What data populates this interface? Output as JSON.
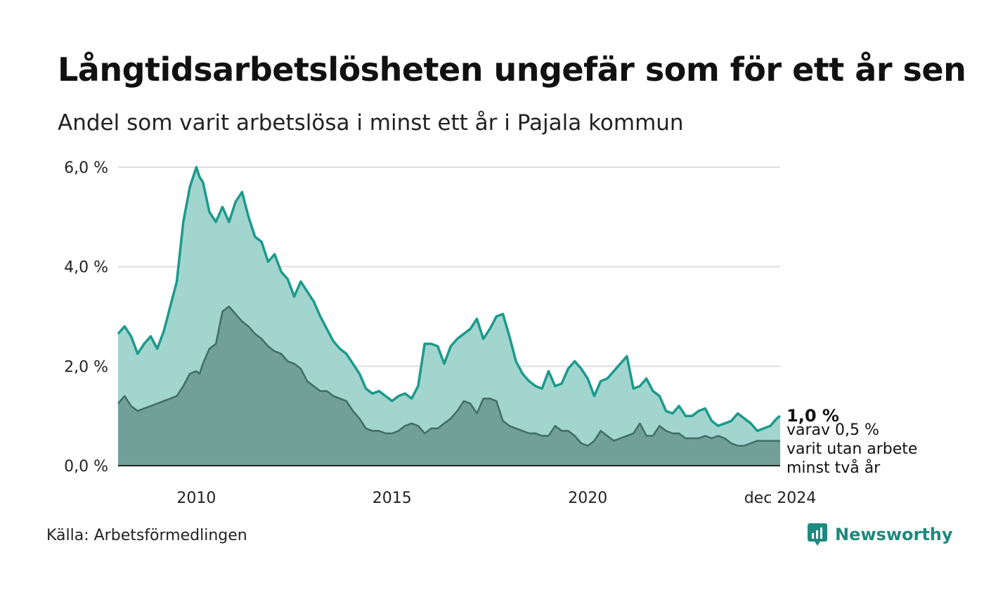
{
  "title": "Långtidsarbetslösheten ungefär som för ett år sen",
  "subtitle": "Andel som varit arbetslösa i minst ett år i Pajala kommun",
  "source": "Källa: Arbetsförmedlingen",
  "brand": "Newsworthy",
  "colors": {
    "line_total": "#1a9a8c",
    "area_total": "#a3d5cf",
    "line_long": "#3e6e64",
    "area_long": "#729f98",
    "grid": "#dddddd"
  },
  "chart_data": {
    "type": "area",
    "title": "Andel som varit arbetslösa i minst ett år i Pajala kommun",
    "xlabel": "",
    "ylabel": "",
    "ylim": [
      0,
      6
    ],
    "xlim": [
      2008.0,
      2024.917
    ],
    "y_ticks": [
      "6,0 %",
      "4,0 %",
      "2,0 %",
      "0,0 %"
    ],
    "y_tick_values": [
      6,
      4,
      2,
      0
    ],
    "x_ticks": [
      "2010",
      "2015",
      "2020",
      "dec 2024"
    ],
    "x_tick_values": [
      2010,
      2015,
      2020,
      2024.917
    ],
    "end_label_value": "1,0 %",
    "end_label_note": [
      "varav 0,5 %",
      "varit utan arbete",
      "minst två år"
    ],
    "series": [
      {
        "name": "Arbetslösa minst ett år",
        "x": [
          2008.0,
          2008.167,
          2008.333,
          2008.5,
          2008.667,
          2008.833,
          2009.0,
          2009.167,
          2009.333,
          2009.5,
          2009.667,
          2009.833,
          2010.0,
          2010.083,
          2010.167,
          2010.333,
          2010.5,
          2010.667,
          2010.833,
          2011.0,
          2011.167,
          2011.333,
          2011.5,
          2011.667,
          2011.833,
          2012.0,
          2012.167,
          2012.333,
          2012.5,
          2012.667,
          2012.833,
          2013.0,
          2013.167,
          2013.333,
          2013.5,
          2013.667,
          2013.833,
          2014.0,
          2014.167,
          2014.333,
          2014.5,
          2014.667,
          2014.833,
          2015.0,
          2015.167,
          2015.333,
          2015.5,
          2015.667,
          2015.833,
          2016.0,
          2016.167,
          2016.333,
          2016.5,
          2016.667,
          2016.833,
          2017.0,
          2017.167,
          2017.333,
          2017.5,
          2017.667,
          2017.833,
          2018.0,
          2018.167,
          2018.333,
          2018.5,
          2018.667,
          2018.833,
          2019.0,
          2019.167,
          2019.333,
          2019.5,
          2019.667,
          2019.833,
          2020.0,
          2020.167,
          2020.333,
          2020.5,
          2020.667,
          2020.833,
          2021.0,
          2021.167,
          2021.333,
          2021.5,
          2021.667,
          2021.833,
          2022.0,
          2022.167,
          2022.333,
          2022.5,
          2022.667,
          2022.833,
          2023.0,
          2023.167,
          2023.333,
          2023.5,
          2023.667,
          2023.833,
          2024.0,
          2024.167,
          2024.333,
          2024.5,
          2024.667,
          2024.833,
          2024.917
        ],
        "values": [
          2.65,
          2.8,
          2.6,
          2.25,
          2.45,
          2.6,
          2.35,
          2.7,
          3.2,
          3.7,
          4.9,
          5.6,
          6.0,
          5.8,
          5.7,
          5.1,
          4.9,
          5.2,
          4.9,
          5.3,
          5.5,
          5.0,
          4.6,
          4.5,
          4.1,
          4.25,
          3.9,
          3.75,
          3.4,
          3.7,
          3.5,
          3.3,
          3.0,
          2.75,
          2.5,
          2.35,
          2.25,
          2.05,
          1.85,
          1.55,
          1.45,
          1.5,
          1.4,
          1.3,
          1.4,
          1.45,
          1.35,
          1.6,
          2.45,
          2.45,
          2.4,
          2.05,
          2.4,
          2.55,
          2.65,
          2.75,
          2.95,
          2.55,
          2.75,
          3.0,
          3.05,
          2.6,
          2.1,
          1.85,
          1.7,
          1.6,
          1.55,
          1.9,
          1.6,
          1.65,
          1.95,
          2.1,
          1.95,
          1.75,
          1.4,
          1.7,
          1.75,
          1.9,
          2.05,
          2.2,
          1.55,
          1.6,
          1.75,
          1.5,
          1.4,
          1.1,
          1.05,
          1.2,
          1.0,
          1.0,
          1.1,
          1.15,
          0.9,
          0.8,
          0.85,
          0.9,
          1.05,
          0.95,
          0.85,
          0.7,
          0.75,
          0.8,
          0.95,
          1.0
        ]
      },
      {
        "name": "Varav minst två år",
        "x": [
          2008.0,
          2008.167,
          2008.333,
          2008.5,
          2008.667,
          2008.833,
          2009.0,
          2009.167,
          2009.333,
          2009.5,
          2009.667,
          2009.833,
          2010.0,
          2010.083,
          2010.167,
          2010.333,
          2010.5,
          2010.667,
          2010.833,
          2011.0,
          2011.167,
          2011.333,
          2011.5,
          2011.667,
          2011.833,
          2012.0,
          2012.167,
          2012.333,
          2012.5,
          2012.667,
          2012.833,
          2013.0,
          2013.167,
          2013.333,
          2013.5,
          2013.667,
          2013.833,
          2014.0,
          2014.167,
          2014.333,
          2014.5,
          2014.667,
          2014.833,
          2015.0,
          2015.167,
          2015.333,
          2015.5,
          2015.667,
          2015.833,
          2016.0,
          2016.167,
          2016.333,
          2016.5,
          2016.667,
          2016.833,
          2017.0,
          2017.167,
          2017.333,
          2017.5,
          2017.667,
          2017.833,
          2018.0,
          2018.167,
          2018.333,
          2018.5,
          2018.667,
          2018.833,
          2019.0,
          2019.167,
          2019.333,
          2019.5,
          2019.667,
          2019.833,
          2020.0,
          2020.167,
          2020.333,
          2020.5,
          2020.667,
          2020.833,
          2021.0,
          2021.167,
          2021.333,
          2021.5,
          2021.667,
          2021.833,
          2022.0,
          2022.167,
          2022.333,
          2022.5,
          2022.667,
          2022.833,
          2023.0,
          2023.167,
          2023.333,
          2023.5,
          2023.667,
          2023.833,
          2024.0,
          2024.167,
          2024.333,
          2024.5,
          2024.667,
          2024.833,
          2024.917
        ],
        "values": [
          1.25,
          1.4,
          1.2,
          1.1,
          1.15,
          1.2,
          1.25,
          1.3,
          1.35,
          1.4,
          1.6,
          1.85,
          1.9,
          1.85,
          2.05,
          2.35,
          2.45,
          3.1,
          3.2,
          3.05,
          2.9,
          2.8,
          2.65,
          2.55,
          2.4,
          2.3,
          2.25,
          2.1,
          2.05,
          1.95,
          1.7,
          1.6,
          1.5,
          1.5,
          1.4,
          1.35,
          1.3,
          1.1,
          0.95,
          0.75,
          0.7,
          0.7,
          0.65,
          0.65,
          0.7,
          0.8,
          0.85,
          0.8,
          0.65,
          0.75,
          0.75,
          0.85,
          0.95,
          1.1,
          1.3,
          1.25,
          1.05,
          1.35,
          1.35,
          1.3,
          0.9,
          0.8,
          0.75,
          0.7,
          0.65,
          0.65,
          0.6,
          0.6,
          0.8,
          0.7,
          0.7,
          0.6,
          0.45,
          0.4,
          0.5,
          0.7,
          0.6,
          0.5,
          0.55,
          0.6,
          0.65,
          0.85,
          0.6,
          0.6,
          0.8,
          0.7,
          0.65,
          0.65,
          0.55,
          0.55,
          0.55,
          0.6,
          0.55,
          0.6,
          0.55,
          0.45,
          0.4,
          0.4,
          0.45,
          0.5,
          0.5,
          0.5,
          0.5,
          0.5
        ]
      }
    ]
  }
}
